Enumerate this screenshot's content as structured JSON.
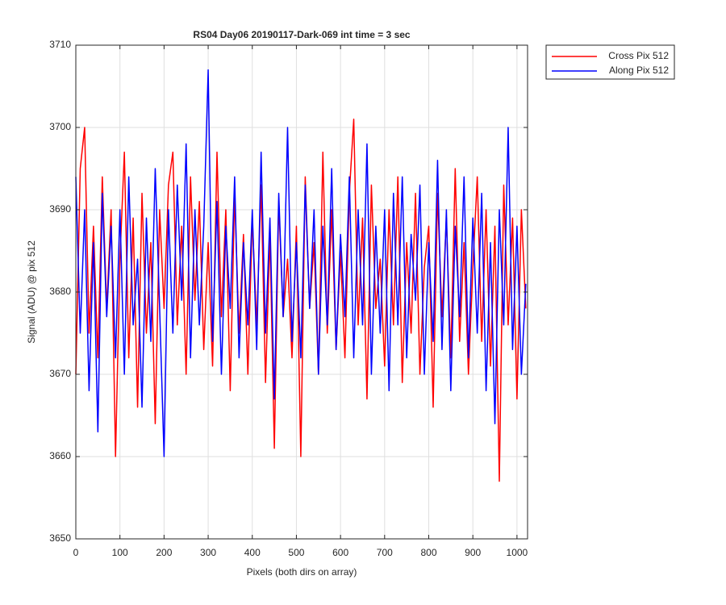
{
  "chart_data": {
    "type": "line",
    "title": "RS04 Day06 20190117-Dark-069 int time = 3 sec",
    "xlabel": "Pixels (both dirs on array)",
    "ylabel": "Signal (ADU) @ pix 512",
    "x": [
      0,
      10,
      20,
      30,
      40,
      50,
      60,
      70,
      80,
      90,
      100,
      110,
      120,
      130,
      140,
      150,
      160,
      170,
      180,
      190,
      200,
      210,
      220,
      230,
      240,
      250,
      260,
      270,
      280,
      290,
      300,
      310,
      320,
      330,
      340,
      350,
      360,
      370,
      380,
      390,
      400,
      410,
      420,
      430,
      440,
      450,
      460,
      470,
      480,
      490,
      500,
      510,
      520,
      530,
      540,
      550,
      560,
      570,
      580,
      590,
      600,
      610,
      620,
      630,
      640,
      650,
      660,
      670,
      680,
      690,
      700,
      710,
      720,
      730,
      740,
      750,
      760,
      770,
      780,
      790,
      800,
      810,
      820,
      830,
      840,
      850,
      860,
      870,
      880,
      890,
      900,
      910,
      920,
      930,
      940,
      950,
      960,
      970,
      980,
      990,
      1000,
      1010,
      1020
    ],
    "series": [
      {
        "name": "Cross Pix 512",
        "color": "#ff0000",
        "values": [
          3670,
          3695,
          3700,
          3675,
          3688,
          3672,
          3694,
          3678,
          3690,
          3660,
          3684,
          3697,
          3672,
          3689,
          3666,
          3692,
          3675,
          3686,
          3664,
          3690,
          3678,
          3693,
          3697,
          3676,
          3688,
          3670,
          3694,
          3679,
          3691,
          3673,
          3686,
          3671,
          3697,
          3677,
          3690,
          3668,
          3692,
          3675,
          3687,
          3670,
          3689,
          3676,
          3693,
          3669,
          3687,
          3661,
          3691,
          3677,
          3684,
          3672,
          3688,
          3660,
          3694,
          3678,
          3686,
          3670,
          3697,
          3675,
          3690,
          3673,
          3685,
          3672,
          3692,
          3701,
          3676,
          3689,
          3667,
          3693,
          3678,
          3684,
          3671,
          3690,
          3676,
          3694,
          3669,
          3686,
          3675,
          3692,
          3670,
          3683,
          3688,
          3666,
          3692,
          3677,
          3689,
          3672,
          3695,
          3674,
          3686,
          3670,
          3683,
          3694,
          3674,
          3690,
          3671,
          3688,
          3657,
          3693,
          3676,
          3689,
          3667,
          3690,
          3678
        ]
      },
      {
        "name": "Along Pix 512",
        "color": "#0000ff",
        "values": [
          3694,
          3675,
          3690,
          3668,
          3686,
          3663,
          3692,
          3677,
          3688,
          3672,
          3690,
          3670,
          3694,
          3676,
          3684,
          3666,
          3689,
          3674,
          3695,
          3678,
          3660,
          3690,
          3675,
          3693,
          3679,
          3698,
          3672,
          3690,
          3676,
          3688,
          3707,
          3674,
          3691,
          3670,
          3688,
          3678,
          3694,
          3672,
          3686,
          3676,
          3690,
          3673,
          3697,
          3675,
          3689,
          3667,
          3692,
          3677,
          3700,
          3674,
          3686,
          3672,
          3693,
          3678,
          3690,
          3670,
          3688,
          3676,
          3695,
          3673,
          3687,
          3677,
          3694,
          3672,
          3690,
          3676,
          3698,
          3670,
          3688,
          3675,
          3690,
          3668,
          3692,
          3676,
          3694,
          3672,
          3687,
          3679,
          3693,
          3670,
          3686,
          3674,
          3696,
          3673,
          3690,
          3668,
          3688,
          3677,
          3694,
          3672,
          3689,
          3675,
          3692,
          3668,
          3686,
          3664,
          3690,
          3676,
          3700,
          3673,
          3688,
          3670,
          3681
        ]
      }
    ],
    "xlim": [
      0,
      1024
    ],
    "xticks": [
      0,
      100,
      200,
      300,
      400,
      500,
      600,
      700,
      800,
      900,
      1000
    ],
    "ylim": [
      3650,
      3710
    ],
    "yticks": [
      3650,
      3660,
      3670,
      3680,
      3690,
      3700,
      3710
    ],
    "grid": true,
    "legend": "northeastoutside"
  }
}
